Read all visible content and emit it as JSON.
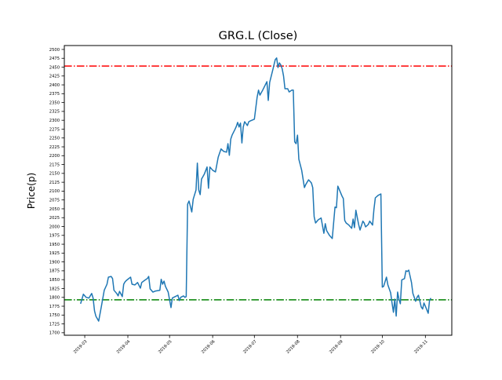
{
  "chart_data": {
    "type": "line",
    "title": "GRG.L (Close)",
    "xlabel": "",
    "ylabel": "Price(p)",
    "x_units": "days since 2019-03-01",
    "xlim": [
      -14.7,
      264
    ],
    "ylim": [
      1693,
      2511
    ],
    "grid": false,
    "x_ticks": [
      {
        "day": 0,
        "label": "2019-03"
      },
      {
        "day": 31,
        "label": "2019-04"
      },
      {
        "day": 61,
        "label": "2019-05"
      },
      {
        "day": 92,
        "label": "2019-06"
      },
      {
        "day": 122,
        "label": "2019-07"
      },
      {
        "day": 153,
        "label": "2019-08"
      },
      {
        "day": 184,
        "label": "2019-09"
      },
      {
        "day": 214,
        "label": "2019-10"
      },
      {
        "day": 245,
        "label": "2019-11"
      }
    ],
    "y_ticks": [
      1700,
      1725,
      1750,
      1775,
      1800,
      1825,
      1850,
      1875,
      1900,
      1925,
      1950,
      1975,
      2000,
      2025,
      2050,
      2075,
      2100,
      2125,
      2150,
      2175,
      2200,
      2225,
      2250,
      2275,
      2300,
      2325,
      2350,
      2375,
      2400,
      2425,
      2450,
      2475,
      2500
    ],
    "hlines": [
      {
        "name": "resistance",
        "value": 2453,
        "color": "#ff0000",
        "style": "dashdot"
      },
      {
        "name": "support",
        "value": 1793,
        "color": "#008000",
        "style": "dashdot"
      }
    ],
    "series": [
      {
        "name": "Close",
        "color": "#1f77b4",
        "days": [
          -3,
          -2,
          -1,
          1,
          3,
          5,
          6,
          7,
          8,
          10,
          12,
          14,
          16,
          17,
          19,
          20,
          21,
          23,
          24,
          25,
          27,
          28,
          29,
          30,
          33,
          34,
          36,
          38,
          40,
          41,
          43,
          45,
          46,
          47,
          49,
          51,
          54,
          55,
          56,
          57,
          58,
          60,
          62,
          63,
          65,
          67,
          68,
          69,
          71,
          72,
          73,
          74,
          75,
          77,
          78,
          80,
          81,
          82,
          83,
          84,
          86,
          88,
          89,
          90,
          92,
          94,
          96,
          98,
          100,
          102,
          103,
          104,
          105,
          106,
          108,
          109,
          110,
          111,
          112,
          113,
          114,
          115,
          117,
          118,
          119,
          122,
          124,
          125,
          126,
          128,
          131,
          132,
          133,
          135,
          137,
          138,
          139,
          140,
          141,
          142,
          143,
          144,
          146,
          147,
          149,
          150,
          151,
          152,
          153,
          154,
          156,
          158,
          159,
          161,
          163,
          164,
          165,
          166,
          168,
          170,
          172,
          173,
          174,
          176,
          178,
          180,
          181,
          182,
          183,
          185,
          186,
          187,
          188,
          190,
          192,
          193,
          194,
          195,
          197,
          198,
          200,
          201,
          202,
          204,
          205,
          207,
          208,
          209,
          211,
          213,
          214,
          215,
          217,
          218,
          220,
          221,
          222,
          223,
          224,
          225,
          226,
          227,
          228,
          230,
          231,
          232,
          233,
          235,
          236,
          238,
          239,
          240,
          242,
          243,
          244,
          245,
          247,
          248,
          249
        ],
        "values": [
          1782,
          1795,
          1809,
          1800,
          1798,
          1811,
          1798,
          1762,
          1747,
          1733,
          1775,
          1820,
          1837,
          1857,
          1859,
          1853,
          1820,
          1811,
          1804,
          1817,
          1802,
          1837,
          1844,
          1848,
          1857,
          1837,
          1835,
          1842,
          1826,
          1842,
          1848,
          1853,
          1859,
          1824,
          1815,
          1818,
          1820,
          1851,
          1837,
          1846,
          1831,
          1815,
          1771,
          1798,
          1802,
          1806,
          1791,
          1800,
          1804,
          1800,
          1802,
          2063,
          2072,
          2041,
          2077,
          2103,
          2179,
          2103,
          2090,
          2134,
          2148,
          2168,
          2108,
          2168,
          2159,
          2154,
          2196,
          2219,
          2212,
          2210,
          2234,
          2201,
          2247,
          2258,
          2274,
          2283,
          2294,
          2281,
          2292,
          2236,
          2281,
          2296,
          2285,
          2296,
          2298,
          2303,
          2365,
          2385,
          2371,
          2385,
          2409,
          2356,
          2407,
          2438,
          2471,
          2476,
          2449,
          2462,
          2456,
          2445,
          2425,
          2389,
          2389,
          2380,
          2385,
          2385,
          2239,
          2234,
          2258,
          2190,
          2159,
          2110,
          2119,
          2132,
          2123,
          2110,
          2028,
          2010,
          2019,
          2024,
          1981,
          2008,
          1988,
          1975,
          1966,
          2055,
          2053,
          2114,
          2105,
          2086,
          2079,
          2017,
          2010,
          2004,
          1995,
          2021,
          1997,
          2046,
          2006,
          1990,
          2015,
          2010,
          1999,
          2006,
          2015,
          2004,
          2048,
          2081,
          2088,
          2092,
          1829,
          1831,
          1857,
          1835,
          1813,
          1784,
          1758,
          1795,
          1747,
          1815,
          1795,
          1782,
          1849,
          1853,
          1875,
          1873,
          1877,
          1842,
          1811,
          1789,
          1800,
          1806,
          1773,
          1767,
          1784,
          1775,
          1755,
          1791,
          1798
        ]
      }
    ]
  }
}
